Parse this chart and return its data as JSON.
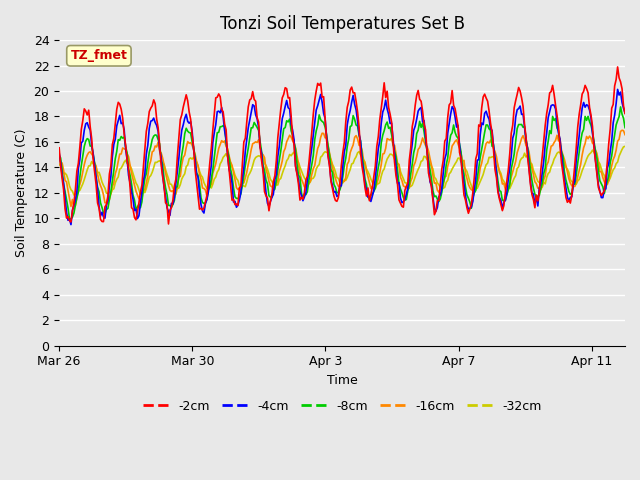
{
  "title": "Tonzi Soil Temperatures Set B",
  "xlabel": "Time",
  "ylabel": "Soil Temperature (C)",
  "ylim": [
    0,
    24
  ],
  "yticks": [
    0,
    2,
    4,
    6,
    8,
    10,
    12,
    14,
    16,
    18,
    20,
    22,
    24
  ],
  "x_tick_labels": [
    "Mar 26",
    "Mar 30",
    "Apr 3",
    "Apr 7",
    "Apr 11"
  ],
  "annotation_text": "TZ_fmet",
  "annotation_bg": "#ffffcc",
  "annotation_border": "#999966",
  "bg_color": "#e8e8e8",
  "plot_bg": "#e8e8e8",
  "grid_color": "#ffffff",
  "colors": {
    "-2cm": "#ff0000",
    "-4cm": "#0000ff",
    "-8cm": "#00cc00",
    "-16cm": "#ff8800",
    "-32cm": "#cccc00"
  },
  "legend_labels": [
    "-2cm",
    "-4cm",
    "-8cm",
    "-16cm",
    "-32cm"
  ],
  "n_points": 384,
  "start_day": 0,
  "end_day": 17
}
